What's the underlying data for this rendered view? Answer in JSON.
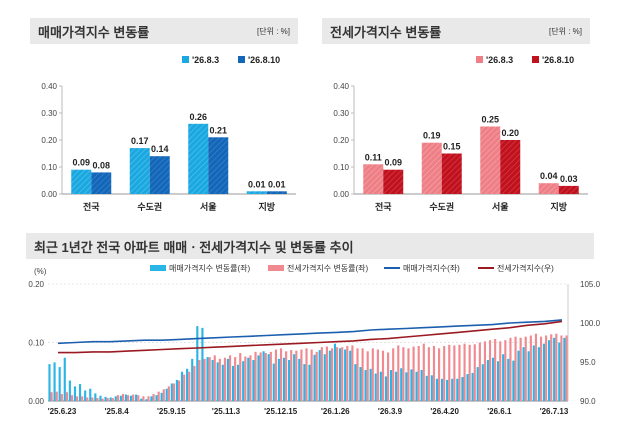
{
  "panels": {
    "sale": {
      "title": "매매가격지수 변동률",
      "unit": "[단위 : %]",
      "legend": [
        "'26.8.3",
        "'26.8.10"
      ],
      "colors": [
        "#1aa8e0",
        "#1467b8"
      ]
    },
    "jeonse": {
      "title": "전세가격지수 변동률",
      "unit": "[단위 : %]",
      "legend": [
        "'26.8.3",
        "'26.8.10"
      ],
      "colors": [
        "#ee7f86",
        "#c0121e"
      ]
    },
    "trend": {
      "title": "최근 1년간 전국 아파트 매매ㆍ전세가격지수 및 변동률 추이",
      "left_axis_unit": "(%)",
      "legend": [
        "매매가격지수 변동률(좌)",
        "전세가격지수 변동률(좌)",
        "매매가격지수(좌)",
        "전세가격지수(우)"
      ],
      "colors": [
        "#2bb5e6",
        "#f08a90",
        "#1c5fae",
        "#9b1a22"
      ]
    }
  },
  "chart_data": [
    {
      "type": "bar",
      "title": "매매가격지수 변동률",
      "categories": [
        "전국",
        "수도권",
        "서울",
        "지방"
      ],
      "series": [
        {
          "name": "'26.8.3",
          "values": [
            0.09,
            0.17,
            0.26,
            0.01
          ],
          "labels": [
            "0.09",
            "0.17",
            "0.26",
            "0.01"
          ]
        },
        {
          "name": "'26.8.10",
          "values": [
            0.08,
            0.14,
            0.21,
            0.01
          ],
          "labels": [
            "0.08",
            "0.14",
            "0.21",
            "0.01"
          ]
        }
      ],
      "ylim": [
        0,
        0.4
      ],
      "yticks": [
        "0.00",
        "0.10",
        "0.20",
        "0.30",
        "0.40"
      ]
    },
    {
      "type": "bar",
      "title": "전세가격지수 변동률",
      "categories": [
        "전국",
        "수도권",
        "서울",
        "지방"
      ],
      "series": [
        {
          "name": "'26.8.3",
          "values": [
            0.11,
            0.19,
            0.25,
            0.04
          ],
          "labels": [
            "0.11",
            "0.19",
            "0.25",
            "0.04"
          ]
        },
        {
          "name": "'26.8.10",
          "values": [
            0.09,
            0.15,
            0.2,
            0.03
          ],
          "labels": [
            "0.09",
            "0.15",
            "0.20",
            "0.03"
          ]
        }
      ],
      "ylim": [
        0,
        0.4
      ],
      "yticks": [
        "0.00",
        "0.10",
        "0.20",
        "0.30",
        "0.40"
      ]
    },
    {
      "type": "bar",
      "title": "최근 1년간 전국 아파트 매매ㆍ전세가격지수 및 변동률 추이",
      "x_ticks": [
        "'25.6.23",
        "'25.8.4",
        "'25.9.15",
        "'25.11.3",
        "'25.12.15",
        "'26.1.26",
        "'26.3.9",
        "'26.4.20",
        "'26.6.1",
        "'26.7.13"
      ],
      "ylim_left": [
        0,
        0.2
      ],
      "yticks_left": [
        "0.00",
        "0.10",
        "0.20"
      ],
      "ylim_right": [
        90,
        105
      ],
      "yticks_right": [
        "90.0",
        "95.0",
        "100.0",
        "105.0"
      ],
      "series": [
        {
          "name": "매매가격지수 변동률(좌)",
          "axis": "left",
          "type": "bar",
          "values": [
            0.063,
            0.066,
            0.058,
            0.074,
            0.035,
            0.025,
            0.029,
            0.018,
            0.021,
            0.013,
            0.009,
            0.007,
            0.006,
            0.008,
            0.009,
            0.011,
            0.009,
            0.011,
            0.004,
            0.003,
            0.008,
            0.01,
            0.014,
            0.021,
            0.03,
            0.036,
            0.05,
            0.055,
            0.072,
            0.128,
            0.125,
            0.075,
            0.07,
            0.066,
            0.062,
            0.072,
            0.06,
            0.062,
            0.068,
            0.074,
            0.07,
            0.078,
            0.085,
            0.08,
            0.064,
            0.072,
            0.074,
            0.07,
            0.08,
            0.072,
            0.063,
            0.062,
            0.079,
            0.087,
            0.08,
            0.086,
            0.098,
            0.09,
            0.088,
            0.086,
            0.063,
            0.058,
            0.053,
            0.055,
            0.047,
            0.05,
            0.042,
            0.053,
            0.05,
            0.056,
            0.049,
            0.054,
            0.05,
            0.053,
            0.043,
            0.044,
            0.038,
            0.038,
            0.036,
            0.038,
            0.038,
            0.041,
            0.046,
            0.048,
            0.058,
            0.063,
            0.07,
            0.074,
            0.068,
            0.08,
            0.072,
            0.069,
            0.086,
            0.092,
            0.085,
            0.095,
            0.092,
            0.098,
            0.104,
            0.108,
            0.1,
            0.108
          ]
        },
        {
          "name": "전세가격지수 변동률(좌)",
          "axis": "left",
          "type": "bar",
          "values": [
            0.015,
            0.016,
            0.012,
            0.015,
            0.01,
            0.008,
            0.008,
            0.006,
            0.006,
            0.005,
            0.004,
            0.005,
            0.005,
            0.01,
            0.012,
            0.01,
            0.011,
            0.01,
            0.008,
            0.008,
            0.012,
            0.016,
            0.02,
            0.025,
            0.03,
            0.035,
            0.045,
            0.05,
            0.06,
            0.07,
            0.072,
            0.075,
            0.078,
            0.072,
            0.074,
            0.078,
            0.075,
            0.082,
            0.076,
            0.078,
            0.084,
            0.083,
            0.082,
            0.084,
            0.088,
            0.09,
            0.085,
            0.087,
            0.086,
            0.088,
            0.09,
            0.088,
            0.084,
            0.092,
            0.093,
            0.09,
            0.092,
            0.092,
            0.094,
            0.095,
            0.09,
            0.09,
            0.085,
            0.09,
            0.088,
            0.086,
            0.083,
            0.09,
            0.095,
            0.092,
            0.09,
            0.093,
            0.094,
            0.098,
            0.092,
            0.094,
            0.09,
            0.094,
            0.096,
            0.095,
            0.096,
            0.098,
            0.096,
            0.097,
            0.1,
            0.102,
            0.104,
            0.106,
            0.102,
            0.104,
            0.108,
            0.11,
            0.108,
            0.11,
            0.112,
            0.115,
            0.11,
            0.112,
            0.114,
            0.115,
            0.112,
            0.112
          ]
        },
        {
          "name": "매매가격지수(좌)",
          "axis": "right",
          "type": "line",
          "values": [
            97.4,
            97.5,
            97.6,
            97.6,
            97.7,
            97.8,
            97.8,
            97.9,
            98.0,
            98.1,
            98.2,
            98.3,
            98.4,
            98.5,
            98.6,
            98.7,
            98.8,
            98.9,
            99.1,
            99.2,
            99.3,
            99.4,
            99.5,
            99.6,
            99.7,
            99.8,
            100.0,
            100.1,
            100.2,
            100.4
          ]
        },
        {
          "name": "전세가격지수(우)",
          "axis": "right",
          "type": "line",
          "values": [
            96.2,
            96.2,
            96.3,
            96.3,
            96.4,
            96.5,
            96.6,
            96.7,
            96.8,
            96.9,
            97.0,
            97.1,
            97.2,
            97.3,
            97.4,
            97.5,
            97.6,
            97.7,
            97.9,
            98.0,
            98.2,
            98.4,
            98.6,
            98.8,
            99.0,
            99.2,
            99.4,
            99.7,
            99.9,
            100.2
          ]
        }
      ]
    }
  ]
}
